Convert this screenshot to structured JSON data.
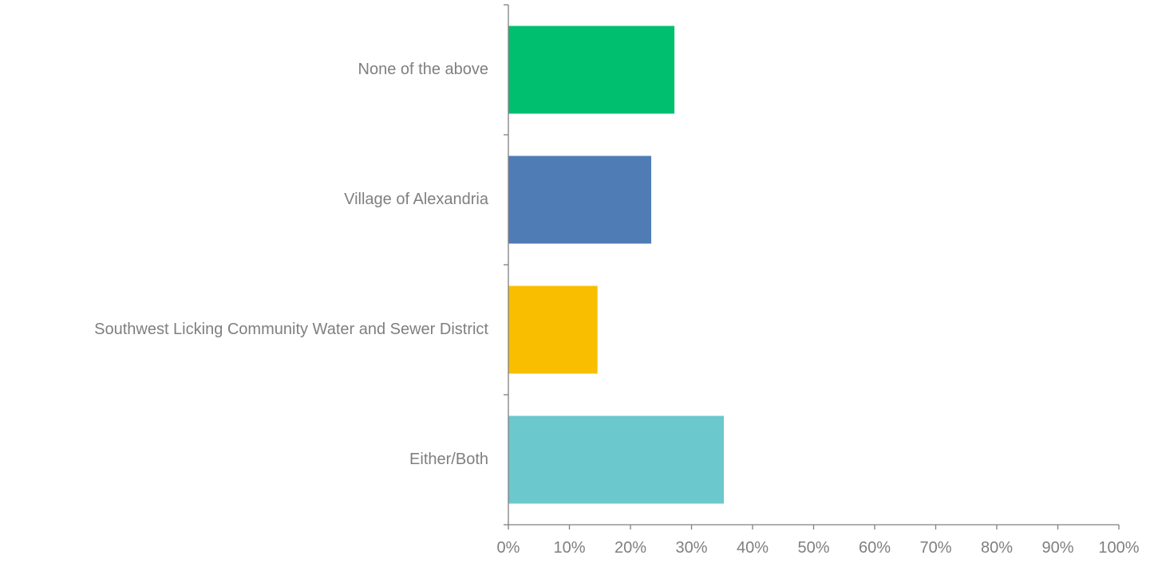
{
  "chart_data": {
    "type": "bar",
    "orientation": "horizontal",
    "categories": [
      "None of the above",
      "Village of Alexandria",
      "Southwest Licking Community Water and Sewer District",
      "Either/Both"
    ],
    "values": [
      27.2,
      23.4,
      14.6,
      35.3
    ],
    "colors": [
      "#00BF6F",
      "#507CB6",
      "#F9BE00",
      "#6BC8CD"
    ],
    "xlim": [
      0,
      100
    ],
    "x_ticks": [
      0,
      10,
      20,
      30,
      40,
      50,
      60,
      70,
      80,
      90,
      100
    ],
    "x_tick_labels": [
      "0%",
      "10%",
      "20%",
      "30%",
      "40%",
      "50%",
      "60%",
      "70%",
      "80%",
      "90%",
      "100%"
    ],
    "title": "",
    "xlabel": "",
    "ylabel": "",
    "grid": false,
    "legend": "none"
  }
}
